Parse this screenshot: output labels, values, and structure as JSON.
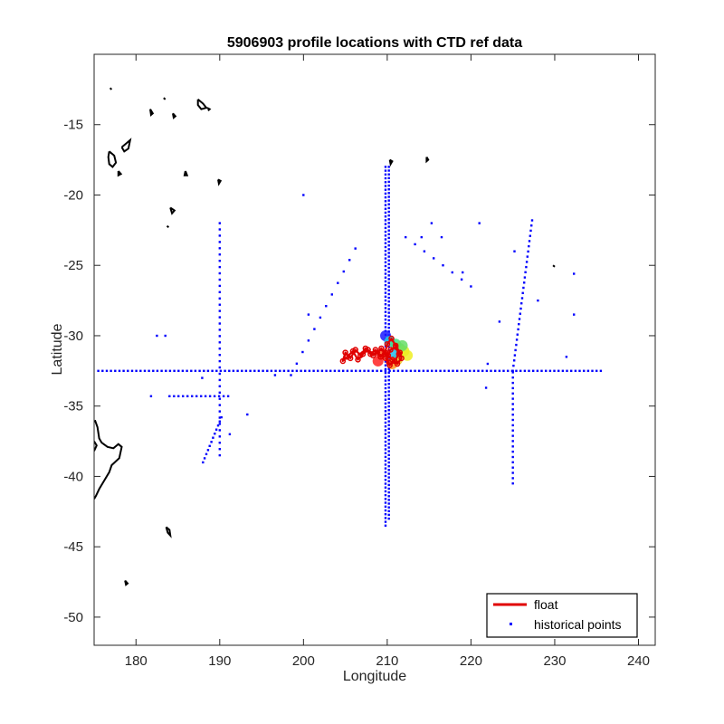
{
  "chart_data": {
    "type": "scatter",
    "title": "5906903 profile locations with CTD ref data",
    "xlabel": "Longitude",
    "ylabel": "Latitude",
    "xlim": [
      175,
      242
    ],
    "ylim": [
      -52,
      -10
    ],
    "xticks": [
      180,
      190,
      200,
      210,
      220,
      230,
      240
    ],
    "yticks": [
      -15,
      -20,
      -25,
      -30,
      -35,
      -40,
      -45,
      -50
    ],
    "xtick_labels": [
      "180",
      "190",
      "200",
      "210",
      "220",
      "230",
      "240"
    ],
    "ytick_labels": [
      "-15",
      "-20",
      "-25",
      "-30",
      "-35",
      "-40",
      "-45",
      "-50"
    ],
    "grid": false,
    "legend": {
      "placement": "bottom-right",
      "entries": [
        {
          "label": "float",
          "color": "#e00000",
          "style": "line"
        },
        {
          "label": "historical points",
          "color": "#0000ff",
          "style": "marker"
        }
      ]
    },
    "colors": {
      "float": "#e00000",
      "historical": "#0000ff",
      "coast": "#000000"
    },
    "series": [
      {
        "name": "float",
        "type": "line",
        "color": "#e00000",
        "x": [
          210.2,
          209.8,
          209.2,
          208.6,
          208.0,
          207.4,
          206.8,
          206.2,
          205.6,
          205.0,
          204.7,
          205.2,
          205.9,
          206.5,
          207.1,
          207.7,
          208.3,
          208.8,
          209.3,
          209.7,
          210.0,
          210.5,
          211.0,
          211.5,
          211.7,
          211.2,
          210.6,
          210.1,
          210.4,
          211.0,
          211.4,
          210.9,
          210.3,
          209.8
        ],
        "y": [
          -31.9,
          -31.2,
          -31.5,
          -31.0,
          -31.3,
          -30.9,
          -31.4,
          -31.0,
          -31.6,
          -31.2,
          -31.8,
          -31.5,
          -31.1,
          -31.7,
          -31.3,
          -31.0,
          -31.4,
          -31.2,
          -30.9,
          -31.3,
          -30.6,
          -30.2,
          -30.7,
          -31.2,
          -31.6,
          -32.0,
          -31.7,
          -31.4,
          -31.0,
          -30.8,
          -31.3,
          -31.8,
          -32.1,
          -31.6
        ]
      },
      {
        "name": "historical points",
        "type": "scatter",
        "color": "#0000ff",
        "note_transects": "points along transects read from the chart",
        "x": [],
        "y": []
      }
    ],
    "transects": [
      {
        "from": [
          175.5,
          -32.5
        ],
        "to": [
          235.5,
          -32.5
        ],
        "n": 120
      },
      {
        "from": [
          209.8,
          -18.0
        ],
        "to": [
          209.8,
          -43.5
        ],
        "n": 95
      },
      {
        "from": [
          210.2,
          -18.0
        ],
        "to": [
          210.2,
          -43.0
        ],
        "n": 95
      },
      {
        "from": [
          190.0,
          -22.0
        ],
        "to": [
          190.0,
          -38.5
        ],
        "n": 38
      },
      {
        "from": [
          225.0,
          -32.6
        ],
        "to": [
          225.0,
          -40.5
        ],
        "n": 22
      },
      {
        "from": [
          225.0,
          -32.5
        ],
        "to": [
          227.3,
          -21.8
        ],
        "n": 30
      },
      {
        "from": [
          188.0,
          -39.0
        ],
        "to": [
          190.2,
          -35.8
        ],
        "n": 12
      },
      {
        "from": [
          184.0,
          -34.3
        ],
        "to": [
          191.0,
          -34.3
        ],
        "n": 14
      },
      {
        "from": [
          198.5,
          -32.8
        ],
        "to": [
          206.2,
          -23.8
        ],
        "n": 12
      },
      {
        "from": [
          212.2,
          -23.0
        ],
        "to": [
          220.0,
          -26.5
        ],
        "n": 8
      }
    ],
    "scattered_points": {
      "x": [
        200.0,
        182.5,
        183.5,
        181.8,
        193.3,
        191.2,
        196.6,
        200.6,
        214.1,
        215.3,
        216.5,
        219.0,
        221.0,
        222.0,
        223.4,
        225.2,
        232.3,
        232.3,
        231.4,
        221.8,
        228.0,
        187.9
      ],
      "y": [
        -20.0,
        -30.0,
        -30.0,
        -34.3,
        -35.6,
        -37.0,
        -32.8,
        -28.5,
        -23.0,
        -22.0,
        -23.0,
        -25.5,
        -22.0,
        -32.0,
        -29.0,
        -24.0,
        -25.6,
        -28.5,
        -31.5,
        -33.7,
        -27.5,
        -33.0
      ]
    },
    "float_markers": {
      "x": [
        209.8,
        210.3,
        211.0,
        211.5,
        212.0,
        211.2,
        210.6,
        209.5,
        208.9,
        212.4,
        211.8,
        210.9
      ],
      "y": [
        -30.0,
        -30.4,
        -30.6,
        -30.9,
        -31.1,
        -31.7,
        -32.0,
        -31.3,
        -31.8,
        -31.4,
        -30.7,
        -31.2
      ],
      "colors": [
        "#1a1aff",
        "#22ccdd",
        "#44dd88",
        "#88ee44",
        "#ddee22",
        "#eecc22",
        "#ff9922",
        "#ff5522",
        "#ff2222",
        "#eeee22",
        "#66dd66",
        "#22bbee"
      ]
    },
    "coastlines": [
      [
        [
          176.8,
          -16.9
        ],
        [
          177.4,
          -17.2
        ],
        [
          177.6,
          -17.7
        ],
        [
          177.2,
          -18.0
        ],
        [
          176.8,
          -17.8
        ],
        [
          176.7,
          -17.3
        ],
        [
          176.8,
          -16.9
        ]
      ],
      [
        [
          178.3,
          -16.6
        ],
        [
          178.9,
          -16.3
        ],
        [
          179.3,
          -16.1
        ],
        [
          179.1,
          -16.7
        ],
        [
          178.6,
          -16.9
        ],
        [
          178.3,
          -16.6
        ]
      ],
      [
        [
          177.9,
          -18.3
        ],
        [
          178.2,
          -18.5
        ],
        [
          177.9,
          -18.6
        ],
        [
          177.9,
          -18.3
        ]
      ],
      [
        [
          175.1,
          -36.0
        ],
        [
          175.4,
          -36.5
        ],
        [
          175.6,
          -37.3
        ],
        [
          175.9,
          -37.6
        ],
        [
          176.6,
          -37.9
        ],
        [
          177.3,
          -38.0
        ],
        [
          177.9,
          -37.7
        ],
        [
          178.3,
          -37.9
        ],
        [
          178.0,
          -38.7
        ],
        [
          177.1,
          -39.2
        ],
        [
          176.8,
          -39.7
        ],
        [
          176.2,
          -40.3
        ],
        [
          175.6,
          -40.9
        ],
        [
          175.2,
          -41.4
        ],
        [
          175.0,
          -41.6
        ]
      ],
      [
        [
          175.0,
          -38.2
        ],
        [
          175.3,
          -37.8
        ],
        [
          175.0,
          -37.5
        ]
      ],
      [
        [
          183.6,
          -43.6
        ],
        [
          184.0,
          -43.8
        ],
        [
          184.1,
          -44.2
        ],
        [
          183.8,
          -44.0
        ],
        [
          183.6,
          -43.6
        ]
      ],
      [
        [
          178.7,
          -47.4
        ],
        [
          179.0,
          -47.6
        ],
        [
          178.8,
          -47.7
        ],
        [
          178.7,
          -47.4
        ]
      ],
      [
        [
          185.9,
          -18.3
        ],
        [
          186.1,
          -18.6
        ],
        [
          185.8,
          -18.6
        ],
        [
          185.9,
          -18.3
        ]
      ],
      [
        [
          189.8,
          -18.9
        ],
        [
          190.1,
          -19.0
        ],
        [
          189.9,
          -19.2
        ],
        [
          189.8,
          -18.9
        ]
      ],
      [
        [
          181.7,
          -13.9
        ],
        [
          182.0,
          -14.2
        ],
        [
          181.8,
          -14.3
        ],
        [
          181.7,
          -13.9
        ]
      ],
      [
        [
          184.4,
          -14.2
        ],
        [
          184.7,
          -14.4
        ],
        [
          184.5,
          -14.5
        ],
        [
          184.4,
          -14.2
        ]
      ],
      [
        [
          187.4,
          -13.2
        ],
        [
          188.0,
          -13.5
        ],
        [
          188.4,
          -13.8
        ],
        [
          187.8,
          -13.9
        ],
        [
          187.4,
          -13.6
        ],
        [
          187.4,
          -13.2
        ]
      ],
      [
        [
          188.5,
          -13.8
        ],
        [
          188.8,
          -13.9
        ],
        [
          188.6,
          -14.0
        ]
      ],
      [
        [
          184.1,
          -20.9
        ],
        [
          184.6,
          -21.1
        ],
        [
          184.3,
          -21.3
        ],
        [
          184.1,
          -20.9
        ]
      ],
      [
        [
          183.7,
          -22.2
        ],
        [
          183.9,
          -22.3
        ]
      ],
      [
        [
          183.3,
          -13.1
        ],
        [
          183.5,
          -13.2
        ]
      ],
      [
        [
          176.9,
          -12.4
        ],
        [
          177.1,
          -12.5
        ]
      ],
      [
        [
          210.3,
          -17.5
        ],
        [
          210.6,
          -17.6
        ],
        [
          210.4,
          -17.8
        ],
        [
          210.3,
          -17.5
        ]
      ],
      [
        [
          214.7,
          -17.3
        ],
        [
          214.9,
          -17.5
        ],
        [
          214.7,
          -17.6
        ],
        [
          214.7,
          -17.3
        ]
      ],
      [
        [
          229.8,
          -25.0
        ],
        [
          230.0,
          -25.1
        ]
      ]
    ]
  }
}
